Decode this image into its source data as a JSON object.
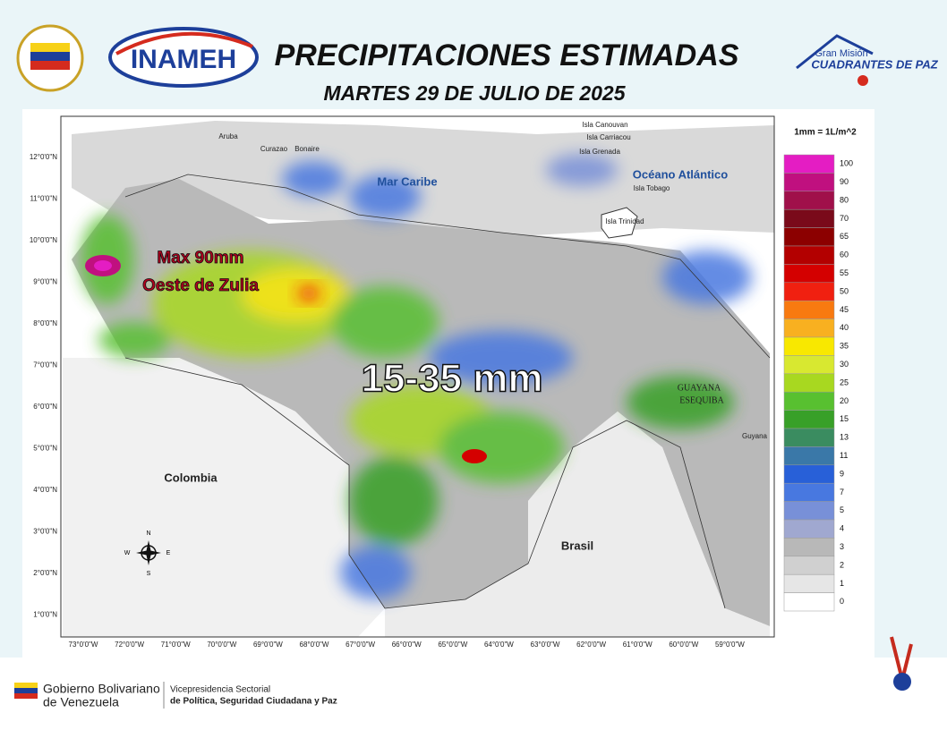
{
  "header": {
    "title": "PRECIPITACIONES ESTIMADAS",
    "date": "MARTES 29 DE JULIO DE 2025",
    "inameh": "INAMEH",
    "mision_top": "Gran Misión",
    "mision_bottom": "CUADRANTES DE PAZ"
  },
  "map": {
    "lat_labels": [
      "12°0'0\"N",
      "11°0'0\"N",
      "10°0'0\"N",
      "9°0'0\"N",
      "8°0'0\"N",
      "7°0'0\"N",
      "6°0'0\"N",
      "5°0'0\"N",
      "4°0'0\"N",
      "3°0'0\"N",
      "2°0'0\"N",
      "1°0'0\"N"
    ],
    "lon_labels": [
      "73°0'0\"W",
      "72°0'0\"W",
      "71°0'0\"W",
      "70°0'0\"W",
      "69°0'0\"W",
      "68°0'0\"W",
      "67°0'0\"W",
      "66°0'0\"W",
      "65°0'0\"W",
      "64°0'0\"W",
      "63°0'0\"W",
      "62°0'0\"W",
      "61°0'0\"W",
      "60°0'0\"W",
      "59°0'0\"W"
    ],
    "places": [
      "Aruba",
      "Curazao",
      "Bonaire",
      "Isla Canouvan",
      "Isla Carriacou",
      "Isla Grenada",
      "Isla Tobago",
      "Isla Trinidad",
      "Guyana"
    ],
    "seas": [
      "Mar Caribe",
      "Océano Atlántico"
    ],
    "countries": [
      "Colombia",
      "Brasil"
    ],
    "esequibo": [
      "GUAYANA",
      "ESEQUIBA"
    ],
    "max_label": "Max 90mm",
    "max_place": "Oeste de Zulia",
    "range_label": "15-35 mm",
    "compass": [
      "N",
      "S",
      "E",
      "W"
    ]
  },
  "legend": {
    "unit": "1mm = 1L/m^2",
    "items": [
      {
        "label": 100,
        "color": "#e41dc3"
      },
      {
        "label": 90,
        "color": "#c0107f"
      },
      {
        "label": 80,
        "color": "#a0104a"
      },
      {
        "label": 70,
        "color": "#7a0a1a"
      },
      {
        "label": 65,
        "color": "#8c0000"
      },
      {
        "label": 60,
        "color": "#b30000"
      },
      {
        "label": 55,
        "color": "#d40000"
      },
      {
        "label": 50,
        "color": "#f02010"
      },
      {
        "label": 45,
        "color": "#f87a10"
      },
      {
        "label": 40,
        "color": "#f8b020"
      },
      {
        "label": 35,
        "color": "#f8e800"
      },
      {
        "label": 30,
        "color": "#d8e830"
      },
      {
        "label": 25,
        "color": "#a8d820"
      },
      {
        "label": 20,
        "color": "#58c030"
      },
      {
        "label": 15,
        "color": "#38a028"
      },
      {
        "label": 13,
        "color": "#3a8c60"
      },
      {
        "label": 11,
        "color": "#3a78a8"
      },
      {
        "label": 9,
        "color": "#2860d8"
      },
      {
        "label": 7,
        "color": "#4878e0"
      },
      {
        "label": 5,
        "color": "#7890d8"
      },
      {
        "label": 4,
        "color": "#a0a8d0"
      },
      {
        "label": 3,
        "color": "#b8b8b8"
      },
      {
        "label": 2,
        "color": "#d0d0d0"
      },
      {
        "label": 1,
        "color": "#e6e6e6"
      },
      {
        "label": 0,
        "color": "#ffffff"
      }
    ]
  },
  "footer": {
    "gob_top": "Gobierno Bolivariano",
    "gob_bottom": "de Venezuela",
    "vice_top": "Vicepresidencia Sectorial",
    "vice_bottom": "de Política, Seguridad Ciudadana y Paz"
  }
}
